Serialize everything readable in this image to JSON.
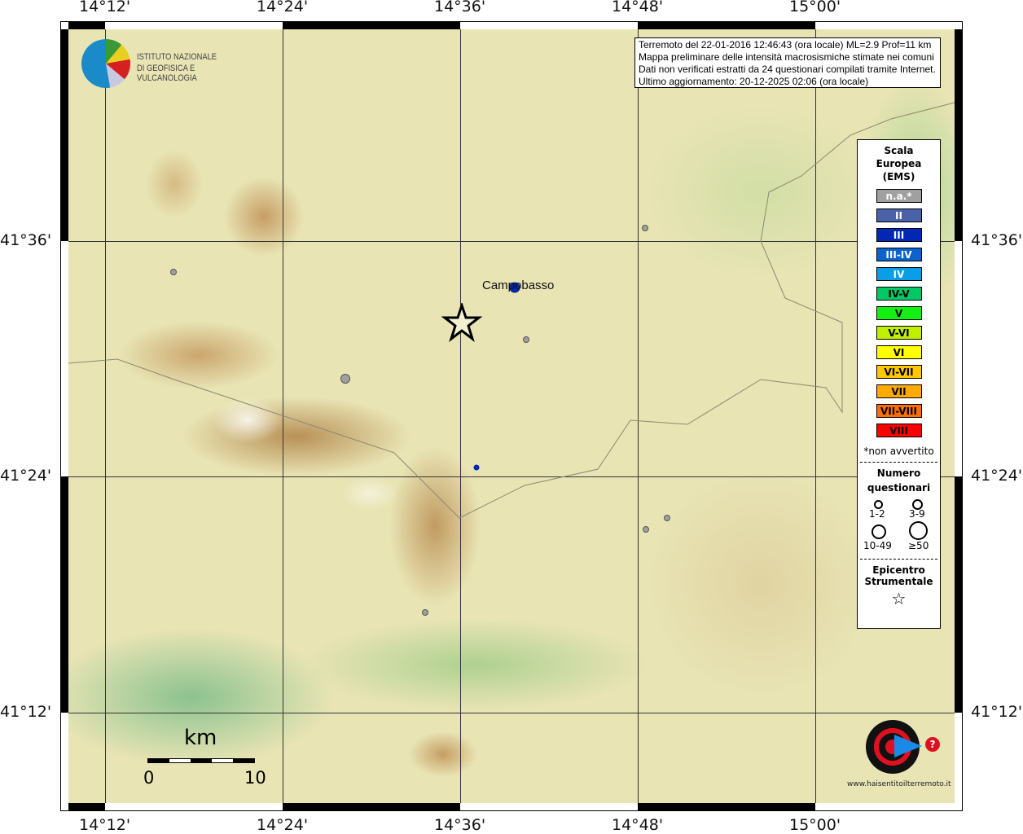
{
  "info": {
    "lines": [
      "Terremoto del 22-01-2016 12:46:43 (ora locale) ML=2.9 Prof=11 km",
      "Mappa preliminare delle intensità macrosismiche stimate nei comuni",
      "Dati non verificati estratti da 24 questionari compilati tramite Internet.",
      "Ultimo aggiornamento: 20-12-2025 02:06 (ora locale)"
    ]
  },
  "logo_ingv": {
    "line1": "ISTITUTO NAZIONALE",
    "line2": "DI GEOFISICA E VULCANOLOGIA"
  },
  "logo_hsit": "www.haisentitoilterremoto.it",
  "axes": {
    "lon": [
      "14°12'",
      "14°24'",
      "14°36'",
      "14°48'",
      "15°00'"
    ],
    "lat": [
      "41°36'",
      "41°24'",
      "41°12'"
    ]
  },
  "city": "Campobasso",
  "scale_bar": {
    "unit": "km",
    "start": "0",
    "end": "10"
  },
  "legend": {
    "title": [
      "Scala",
      "Europea",
      "(EMS)"
    ],
    "classes": [
      {
        "label": "n.a.*",
        "color": "#a0a0a0",
        "text": "#fff"
      },
      {
        "label": "II",
        "color": "#4a62a8",
        "text": "#fff"
      },
      {
        "label": "III",
        "color": "#0028b4",
        "text": "#fff"
      },
      {
        "label": "III-IV",
        "color": "#0a64cc",
        "text": "#fff"
      },
      {
        "label": "IV",
        "color": "#0a9ee6",
        "text": "#fff"
      },
      {
        "label": "IV-V",
        "color": "#00c864",
        "text": "#000"
      },
      {
        "label": "V",
        "color": "#14f014",
        "text": "#000"
      },
      {
        "label": "V-VI",
        "color": "#c0f000",
        "text": "#000"
      },
      {
        "label": "VI",
        "color": "#ffff00",
        "text": "#000"
      },
      {
        "label": "VI-VII",
        "color": "#ffc800",
        "text": "#000"
      },
      {
        "label": "VII",
        "color": "#ffaa00",
        "text": "#000"
      },
      {
        "label": "VII-VIII",
        "color": "#ff6e00",
        "text": "#000"
      },
      {
        "label": "VIII",
        "color": "#ff0000",
        "text": "#000"
      }
    ],
    "note": "*non avvertito",
    "count_title": [
      "Numero",
      "questionari"
    ],
    "counts": [
      "1-2",
      "3-9",
      "10-49",
      "≥50"
    ],
    "epi_title": [
      "Epicentro",
      "Strumentale"
    ]
  }
}
